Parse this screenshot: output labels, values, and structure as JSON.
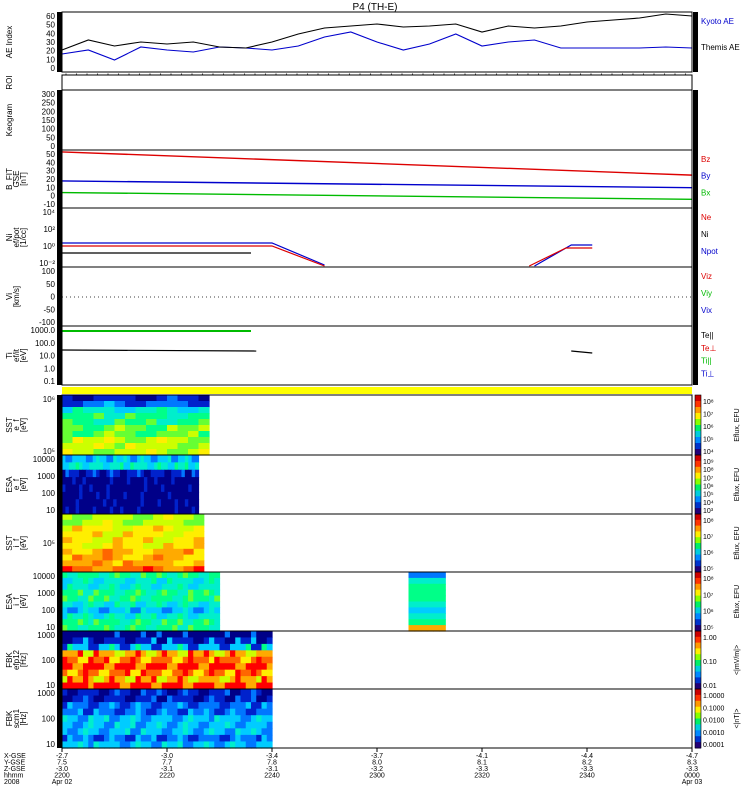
{
  "title": "P4 (TH-E)",
  "colors": {
    "black": "#000000",
    "blue": "#0000cc",
    "red": "#dd0000",
    "green": "#00bb00",
    "yellow": "#ffff00",
    "frame": "#000000"
  },
  "x_axis": {
    "row_labels": [
      "X-GSE",
      "Y-GSE",
      "Z-GSE",
      "hhmm",
      "2008"
    ],
    "ticks": [
      {
        "x": "-2.7",
        "y": "7.5",
        "z": "-3.0",
        "time": "2200",
        "date": "Apr 02"
      },
      {
        "x": "-3.0",
        "y": "7.7",
        "z": "-3.1",
        "time": "2220",
        "date": ""
      },
      {
        "x": "-3.4",
        "y": "7.8",
        "z": "-3.1",
        "time": "2240",
        "date": ""
      },
      {
        "x": "-3.7",
        "y": "8.0",
        "z": "-3.2",
        "time": "2300",
        "date": ""
      },
      {
        "x": "-4.1",
        "y": "8.1",
        "z": "-3.3",
        "time": "2320",
        "date": ""
      },
      {
        "x": "-4.4",
        "y": "8.2",
        "z": "-3.3",
        "time": "2340",
        "date": ""
      },
      {
        "x": "-4.7",
        "y": "8.3",
        "z": "-3.3",
        "time": "0000",
        "date": "Apr 03"
      }
    ]
  },
  "chart_data": [
    {
      "type": "line",
      "panel": "ae",
      "ylabel": "AE Index",
      "ylim": [
        0,
        60
      ],
      "ticks": [
        "60",
        "50",
        "40",
        "30",
        "20",
        "10",
        "0"
      ],
      "legend": [
        "Kyoto AE",
        "Themis AE"
      ],
      "x": [
        0,
        5,
        10,
        15,
        20,
        25,
        30,
        35,
        40,
        45,
        50,
        55,
        60,
        65,
        70,
        75,
        80,
        85,
        90,
        95,
        100,
        105,
        110,
        115,
        120
      ],
      "series": [
        {
          "name": "Kyoto AE",
          "color": "blue",
          "values": [
            18,
            22,
            12,
            25,
            22,
            20,
            25,
            24,
            22,
            26,
            35,
            40,
            30,
            22,
            28,
            38,
            26,
            30,
            32,
            24,
            24,
            24,
            24,
            25,
            24
          ]
        },
        {
          "name": "Themis AE",
          "color": "black",
          "values": [
            22,
            32,
            26,
            30,
            28,
            30,
            25,
            24,
            30,
            38,
            44,
            46,
            48,
            45,
            46,
            48,
            40,
            46,
            44,
            46,
            50,
            52,
            54,
            58,
            56
          ]
        }
      ]
    },
    {
      "type": "table",
      "panel": "roi",
      "ylabel": "ROI"
    },
    {
      "type": "heatmap",
      "panel": "keogram",
      "ylabel": "Keogram",
      "ticks": [
        "300",
        "250",
        "200",
        "150",
        "100",
        "50",
        "0"
      ]
    },
    {
      "type": "line",
      "panel": "bfit",
      "ylabel": [
        "B_FIT",
        "GSE",
        "[nT]"
      ],
      "ylim": [
        -10,
        50
      ],
      "ticks": [
        "50",
        "40",
        "30",
        "20",
        "10",
        "0",
        "-10"
      ],
      "legend": [
        "Bz",
        "By",
        "Bx"
      ],
      "x": [
        0,
        120
      ],
      "series": [
        {
          "name": "Bz",
          "color": "red",
          "values": [
            48,
            24
          ]
        },
        {
          "name": "By",
          "color": "blue",
          "values": [
            18,
            11
          ]
        },
        {
          "name": "Bx",
          "color": "green",
          "values": [
            6,
            -1
          ]
        }
      ]
    },
    {
      "type": "line",
      "panel": "ni",
      "ylabel": [
        "Ni",
        "ef/pot",
        "[1/cc]"
      ],
      "ticks": [
        "10⁴",
        "10²",
        "10⁰",
        "10⁻²"
      ],
      "legend": [
        "Ne",
        "Ni",
        "Npot"
      ]
    },
    {
      "type": "line",
      "panel": "vi",
      "ylabel": [
        "Vi",
        "[km/s]"
      ],
      "ylim": [
        -100,
        100
      ],
      "ticks": [
        "100",
        "50",
        "0",
        "-50",
        "-100"
      ],
      "legend": [
        "Viz",
        "Viy",
        "Vix"
      ]
    },
    {
      "type": "line",
      "panel": "ti",
      "ylabel": [
        "Ti",
        "ef/it",
        "[eV]"
      ],
      "ticks": [
        "1000.0",
        "100.0",
        "10.0",
        "1.0",
        "0.1"
      ],
      "legend": [
        "Te||",
        "Te⊥",
        "Ti||",
        "Ti⊥"
      ]
    },
    {
      "type": "heatmap",
      "panel": "sst-e",
      "ylabel": [
        "SST",
        "e_f",
        "[eV]"
      ],
      "ticks": [
        "10⁶",
        "10⁵"
      ],
      "colorbar": "Eflux, EFU",
      "cticks": [
        "10⁸",
        "10⁷",
        "10⁶",
        "10⁵",
        "10⁴"
      ]
    },
    {
      "type": "heatmap",
      "panel": "esa-e",
      "ylabel": [
        "ESA",
        "e_f",
        "[eV]"
      ],
      "ticks": [
        "10000",
        "1000",
        "100",
        "10"
      ],
      "colorbar": "Eflux, EFU",
      "cticks": [
        "10⁹",
        "10⁸",
        "10⁷",
        "10⁶",
        "10⁵",
        "10⁴",
        "10³"
      ]
    },
    {
      "type": "heatmap",
      "panel": "sst-i",
      "ylabel": [
        "SST",
        "i_f",
        "[eV]"
      ],
      "ticks": [
        "10⁵"
      ],
      "colorbar": "Eflux, EFU",
      "cticks": [
        "10⁸",
        "10⁷",
        "10⁶",
        "10⁵"
      ]
    },
    {
      "type": "heatmap",
      "panel": "esa-i",
      "ylabel": [
        "ESA",
        "i_f",
        "[eV]"
      ],
      "ticks": [
        "10000",
        "1000",
        "100",
        "10"
      ],
      "colorbar": "Eflux, EFU",
      "cticks": [
        "10⁸",
        "10⁷",
        "10⁶",
        "10⁵"
      ]
    },
    {
      "type": "heatmap",
      "panel": "fbk-e",
      "ylabel": [
        "FBK",
        "efp12",
        "[Hz]"
      ],
      "ticks": [
        "1000",
        "100",
        "10"
      ],
      "colorbar": "<|mV/m|>",
      "cticks": [
        "1.00",
        "0.10",
        "0.01"
      ]
    },
    {
      "type": "heatmap",
      "panel": "fbk-b",
      "ylabel": [
        "FBK",
        "scm1",
        "[Hz]"
      ],
      "ticks": [
        "1000",
        "100",
        "10"
      ],
      "colorbar": "<|nT|>",
      "cticks": [
        "1.0000",
        "0.1000",
        "0.0100",
        "0.0010",
        "0.0001"
      ]
    }
  ]
}
